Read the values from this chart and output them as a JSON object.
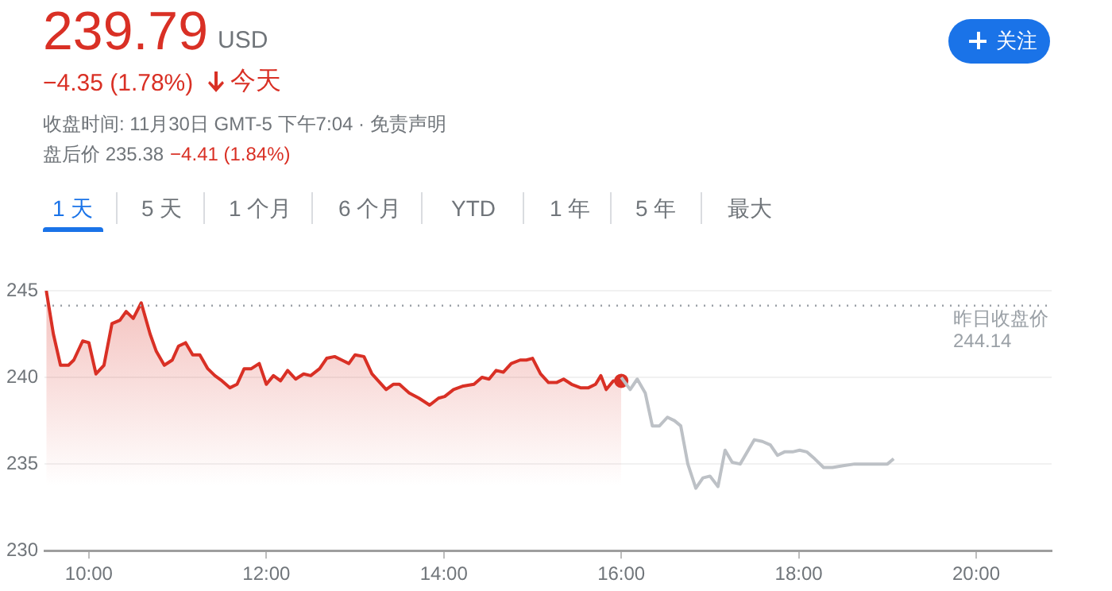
{
  "chart_data": {
    "type": "area",
    "title": "239.79",
    "annotations": [
      "USD",
      "−4.35 (1.78%)",
      "今天",
      "收盘时间: 11月30日 GMT-5 下午7:04 · 免责声明",
      "盘后价 235.38",
      "−4.41 (1.84%)",
      "关注",
      "1 天",
      "5 天",
      "1 个月",
      "6 个月",
      "YTD",
      "1 年",
      "5 年",
      "最大"
    ],
    "xlim": [
      9.5,
      20.85
    ],
    "ylim": [
      230,
      245
    ],
    "xticks": [
      {
        "value": 10,
        "label": "10:00"
      },
      {
        "value": 12,
        "label": "12:00"
      },
      {
        "value": 14,
        "label": "14:00"
      },
      {
        "value": 16,
        "label": "16:00"
      },
      {
        "value": 18,
        "label": "18:00"
      },
      {
        "value": 20,
        "label": "20:00"
      }
    ],
    "yticks": [
      230,
      235,
      240,
      245
    ],
    "grid": "y",
    "ref_lines": [
      {
        "axis": "y",
        "value": 244.14,
        "label": "昨日收盘价\n244.14",
        "color": "#9aa0a6",
        "line_style": "dotted"
      }
    ],
    "series": [
      {
        "color": "#d93025",
        "x": [
          9.52,
          9.6,
          9.68,
          9.77,
          9.83,
          9.93,
          10.0,
          10.08,
          10.17,
          10.26,
          10.35,
          10.42,
          10.5,
          10.59,
          10.69,
          10.76,
          10.85,
          10.94,
          11.01,
          11.09,
          11.17,
          11.25,
          11.34,
          11.42,
          11.5,
          11.59,
          11.67,
          11.75,
          11.83,
          11.92,
          12.0,
          12.08,
          12.16,
          12.24,
          12.33,
          12.42,
          12.5,
          12.6,
          12.68,
          12.77,
          12.85,
          12.93,
          13.0,
          13.1,
          13.19,
          13.35,
          13.43,
          13.5,
          13.61,
          13.72,
          13.84,
          13.94,
          14.01,
          14.11,
          14.22,
          14.34,
          14.43,
          14.51,
          14.59,
          14.67,
          14.76,
          14.86,
          14.93,
          15.0,
          15.09,
          15.18,
          15.27,
          15.35,
          15.44,
          15.54,
          15.63,
          15.71,
          15.77,
          15.83,
          15.91,
          16.0
        ],
        "values": [
          245.0,
          242.5,
          240.7,
          240.7,
          241.0,
          242.1,
          242.0,
          240.2,
          240.7,
          243.1,
          243.3,
          243.8,
          243.4,
          244.3,
          242.5,
          241.5,
          240.7,
          241.0,
          241.8,
          242.0,
          241.3,
          241.3,
          240.5,
          240.1,
          239.8,
          239.4,
          239.6,
          240.5,
          240.5,
          240.8,
          239.6,
          240.1,
          239.8,
          240.4,
          239.9,
          240.2,
          240.1,
          240.5,
          241.1,
          241.2,
          241.0,
          240.8,
          241.3,
          241.2,
          240.2,
          239.3,
          239.6,
          239.6,
          239.1,
          238.8,
          238.4,
          238.8,
          238.9,
          239.3,
          239.5,
          239.6,
          240.0,
          239.9,
          240.4,
          240.3,
          240.8,
          241.0,
          241.0,
          241.1,
          240.2,
          239.7,
          239.7,
          239.9,
          239.6,
          239.4,
          239.4,
          239.6,
          240.1,
          239.3,
          239.8,
          239.8
        ]
      },
      {
        "type": "line",
        "color": "#bdc1c6",
        "x": [
          16.0,
          16.1,
          16.18,
          16.27,
          16.35,
          16.43,
          16.52,
          16.6,
          16.67,
          16.75,
          16.84,
          16.92,
          17.0,
          17.09,
          17.17,
          17.25,
          17.34,
          17.5,
          17.59,
          17.68,
          17.76,
          17.84,
          17.93,
          18.01,
          18.09,
          18.18,
          18.28,
          18.38,
          18.5,
          18.63,
          18.72,
          18.82,
          18.91,
          19.0,
          19.07
        ],
        "values": [
          240.0,
          239.3,
          239.9,
          239.1,
          237.2,
          237.2,
          237.7,
          237.5,
          237.2,
          235.0,
          233.6,
          234.2,
          234.3,
          233.7,
          235.8,
          235.1,
          235.0,
          236.4,
          236.3,
          236.1,
          235.5,
          235.7,
          235.7,
          235.8,
          235.7,
          235.3,
          234.8,
          234.8,
          234.9,
          235.0,
          235.0,
          235.0,
          235.0,
          235.0,
          235.3
        ]
      }
    ]
  }
}
